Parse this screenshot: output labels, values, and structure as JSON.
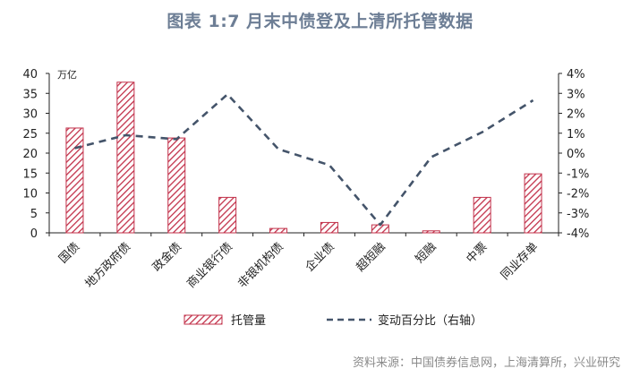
{
  "title": "图表 1:7 月末中债登及上清所托管数据",
  "source": "资料来源：中国债券信息网，上海清算所，兴业研究",
  "colors": {
    "bar": "#c2314a",
    "line": "#44546a",
    "title": "#6d7e95"
  },
  "chart_data": {
    "type": "bar",
    "categories": [
      "国债",
      "地方政府债",
      "政金债",
      "商业银行债",
      "非银机构债",
      "企业债",
      "超短融",
      "短融",
      "中票",
      "同业存单"
    ],
    "series": [
      {
        "name": "托管量",
        "type": "bar",
        "axis": "left",
        "values": [
          26.3,
          37.8,
          23.8,
          8.9,
          1.1,
          2.6,
          2.0,
          0.5,
          8.9,
          14.8
        ]
      },
      {
        "name": "变动百分比（右轴）",
        "type": "line",
        "axis": "right",
        "style": "dashed",
        "values": [
          0.25,
          0.9,
          0.7,
          2.95,
          0.2,
          -0.6,
          -3.6,
          -0.2,
          1.05,
          2.65
        ]
      }
    ],
    "left_axis": {
      "unit": "万亿",
      "ylim": [
        0,
        40
      ],
      "ticks": [
        "0",
        "5",
        "10",
        "15",
        "20",
        "25",
        "30",
        "35",
        "40"
      ]
    },
    "right_axis": {
      "ylim": [
        -4,
        4
      ],
      "ticks": [
        "-4%",
        "-3%",
        "-2%",
        "-1%",
        "0%",
        "1%",
        "2%",
        "3%",
        "4%"
      ]
    },
    "legend": "bottom",
    "grid": false
  }
}
